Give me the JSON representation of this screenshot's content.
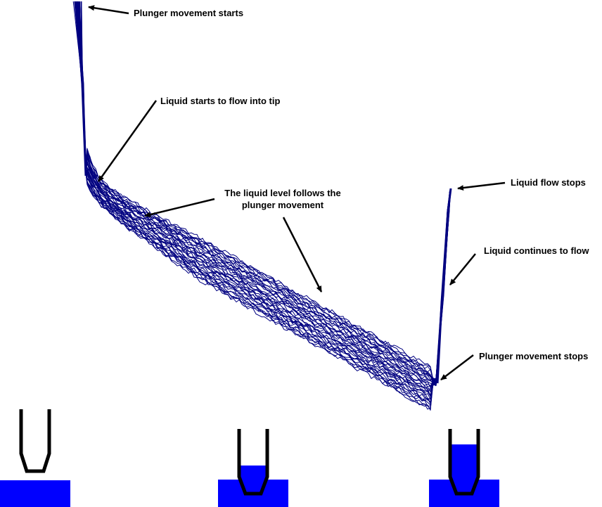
{
  "colors": {
    "curve": "#000080",
    "liquid": "#0000ff",
    "tip_outline": "#000000",
    "arrow": "#000000",
    "text": "#000000",
    "background": "#ffffff"
  },
  "annotations": {
    "plunger_start": "Plunger movement starts",
    "flow_into_tip": "Liquid starts to flow into tip",
    "follows_line1": "The liquid level follows the",
    "follows_line2": "plunger movement",
    "flow_stops": "Liquid  flow stops",
    "continues": "Liquid continues to flow",
    "plunger_stops": "Plunger movement stops"
  },
  "stages": [
    {
      "name": "tip-above-liquid",
      "fill_level": 0.0
    },
    {
      "name": "tip-partially-filled",
      "fill_level": 0.45
    },
    {
      "name": "tip-filled",
      "fill_level": 0.75
    }
  ]
}
